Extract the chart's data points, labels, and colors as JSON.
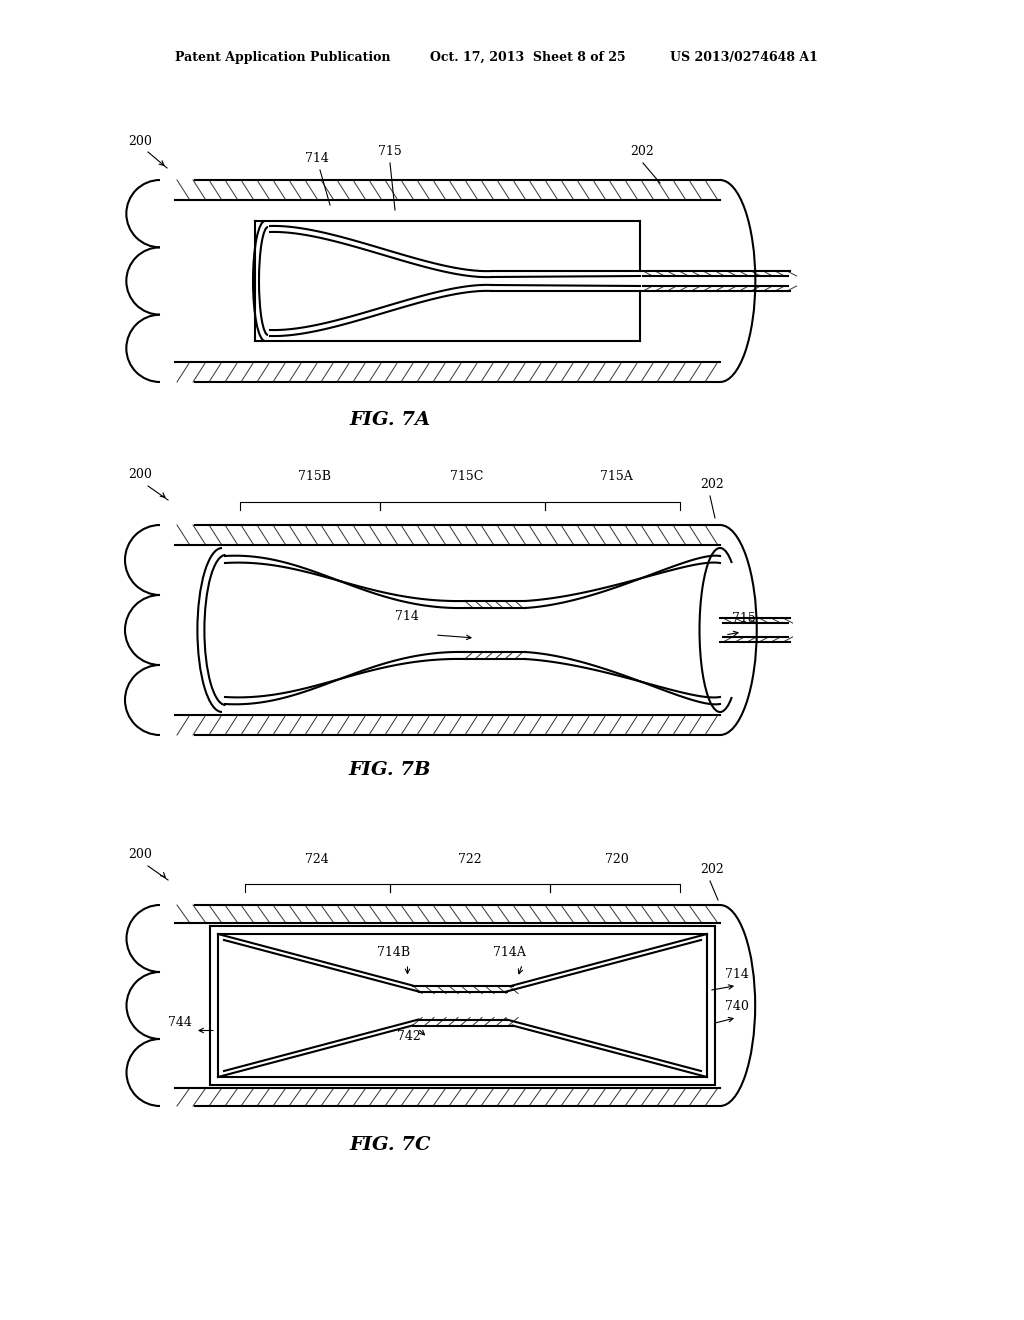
{
  "title_header_left": "Patent Application Publication",
  "title_header_mid": "Oct. 17, 2013  Sheet 8 of 25",
  "title_header_right": "US 2013/0274648 A1",
  "fig7a_label": "FIG. 7A",
  "fig7b_label": "FIG. 7B",
  "fig7c_label": "FIG. 7C",
  "bg_color": "#ffffff",
  "line_color": "#000000"
}
